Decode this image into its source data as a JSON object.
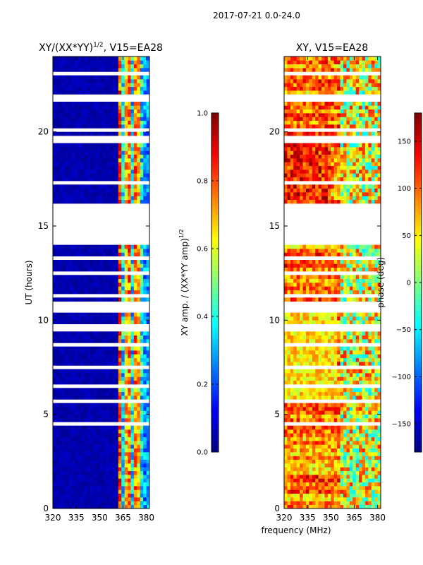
{
  "suptitle": "2017-07-21 0.0-24.0",
  "shared_xlabel": "frequency (MHz)",
  "colors": {
    "jet": [
      "#00007f",
      "#0000ff",
      "#007fff",
      "#00ffff",
      "#7fff7f",
      "#ffff00",
      "#ff7f00",
      "#ff0000",
      "#7f0000"
    ],
    "background": "#ffffff",
    "gap": "#ffffff"
  },
  "chart_data": [
    {
      "type": "heatmap",
      "title_main": "XY/(XX*YY)",
      "title_sup": "1/2",
      "title_tail": ", V15=EA28",
      "xlabel": "",
      "ylabel": "UT (hours)",
      "xlim": [
        320,
        382
      ],
      "ylim": [
        0,
        24
      ],
      "xticks": [
        "320",
        "335",
        "350",
        "365",
        "380"
      ],
      "xtick_values": [
        320,
        335,
        350,
        365,
        380
      ],
      "yticks": [
        "0",
        "5",
        "10",
        "15",
        "20"
      ],
      "ytick_values": [
        0,
        5,
        10,
        15,
        20
      ],
      "data_gaps_hours": [
        [
          14.0,
          16.1
        ],
        [
          21.6,
          21.9
        ],
        [
          10.5,
          10.9
        ],
        [
          9.5,
          9.8
        ],
        [
          5.6,
          5.85
        ],
        [
          19.5,
          19.7
        ],
        [
          11.3,
          11.45
        ],
        [
          6.5,
          6.65
        ],
        [
          7.4,
          7.5
        ],
        [
          8.6,
          8.7
        ],
        [
          12.4,
          12.5
        ],
        [
          17.3,
          17.4
        ],
        [
          2.0,
          2.08
        ],
        [
          1.2,
          1.28
        ],
        [
          3.4,
          3.48
        ],
        [
          13.3,
          13.38
        ],
        [
          20.05,
          20.15
        ],
        [
          23.1,
          23.18
        ],
        [
          7.95,
          8.02
        ],
        [
          4.5,
          4.56
        ]
      ],
      "colorbar": {
        "label_main": "XY amp. / (XX*YY amp)",
        "label_sup": "1/2",
        "range": [
          0.0,
          1.0
        ],
        "ticks": [
          "0.0",
          "0.2",
          "0.4",
          "0.6",
          "0.8",
          "1.0"
        ],
        "tick_values": [
          0.0,
          0.2,
          0.4,
          0.6,
          0.8,
          1.0
        ]
      }
    },
    {
      "type": "heatmap",
      "title_main": "XY, V15=EA28",
      "xlabel": "frequency (MHz)",
      "ylabel": "",
      "xlim": [
        320,
        382
      ],
      "ylim": [
        0,
        24
      ],
      "xticks": [
        "320",
        "335",
        "350",
        "365",
        "380"
      ],
      "xtick_values": [
        320,
        335,
        350,
        365,
        380
      ],
      "yticks": [
        "0",
        "5",
        "10",
        "15",
        "20"
      ],
      "ytick_values": [
        0,
        5,
        10,
        15,
        20
      ],
      "data_gaps_hours": [
        [
          14.0,
          16.1
        ],
        [
          21.6,
          21.9
        ],
        [
          10.5,
          10.9
        ],
        [
          9.5,
          9.8
        ],
        [
          5.6,
          5.85
        ],
        [
          19.5,
          19.7
        ],
        [
          11.3,
          11.45
        ],
        [
          6.5,
          6.65
        ],
        [
          7.4,
          7.5
        ],
        [
          8.6,
          8.7
        ],
        [
          12.4,
          12.5
        ],
        [
          17.3,
          17.4
        ],
        [
          2.0,
          2.08
        ],
        [
          1.2,
          1.28
        ],
        [
          3.4,
          3.48
        ],
        [
          13.3,
          13.38
        ],
        [
          20.05,
          20.15
        ],
        [
          23.1,
          23.18
        ],
        [
          7.95,
          8.02
        ],
        [
          4.5,
          4.56
        ]
      ],
      "colorbar": {
        "label_main": "phase (deg)",
        "range": [
          -180,
          180
        ],
        "ticks": [
          "−150",
          "−100",
          "−50",
          "0",
          "50",
          "100",
          "150"
        ],
        "tick_values": [
          -150,
          -100,
          -50,
          0,
          50,
          100,
          150
        ]
      }
    }
  ]
}
